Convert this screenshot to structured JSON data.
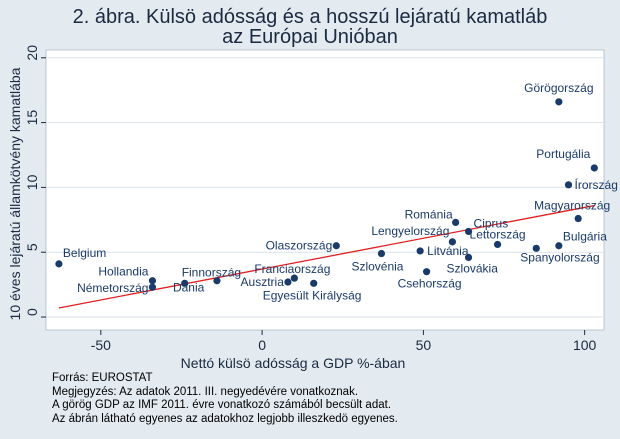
{
  "chart_data": {
    "type": "scatter",
    "title_lines": [
      "2. ábra. Külsö adósság és a hosszú lejáratú kamatláb",
      "az Európai Unióban"
    ],
    "xlabel": "Nettó külsö  adósság a GDP %-ában",
    "ylabel": "10 éves lejáratú államkötvény kamatlába",
    "xlim": [
      -67,
      106
    ],
    "ylim": [
      -1,
      20.6
    ],
    "xticks": [
      -50,
      0,
      50,
      100
    ],
    "yticks": [
      0,
      5,
      10,
      15,
      20
    ],
    "grid": "horizontal",
    "points": [
      {
        "label": "Görögország",
        "x": 92,
        "y": 16.6
      },
      {
        "label": "Portugália",
        "x": 103,
        "y": 11.5
      },
      {
        "label": "Írország",
        "x": 95,
        "y": 10.2
      },
      {
        "label": "Magyarország",
        "x": 98,
        "y": 7.6
      },
      {
        "label": "Románia",
        "x": 60,
        "y": 7.3
      },
      {
        "label": "Ciprus",
        "x": 64,
        "y": 6.6
      },
      {
        "label": "Lettország",
        "x": 73,
        "y": 5.6
      },
      {
        "label": "Lengyelország",
        "x": 59,
        "y": 5.8
      },
      {
        "label": "Bulgária",
        "x": 92,
        "y": 5.5
      },
      {
        "label": "Spanyolország",
        "x": 85,
        "y": 5.3
      },
      {
        "label": "Olaszország",
        "x": 23,
        "y": 5.5
      },
      {
        "label": "Szlovénia",
        "x": 37,
        "y": 4.9
      },
      {
        "label": "Litvánia",
        "x": 49,
        "y": 5.1
      },
      {
        "label": "Szlovákia",
        "x": 64,
        "y": 4.6
      },
      {
        "label": "Csehország",
        "x": 51,
        "y": 3.5
      },
      {
        "label": "Belgium",
        "x": -63,
        "y": 4.1
      },
      {
        "label": "Hollandia",
        "x": -34,
        "y": 2.8
      },
      {
        "label": "Németország",
        "x": -34,
        "y": 2.3
      },
      {
        "label": "Finnország",
        "x": -24,
        "y": 2.6
      },
      {
        "label": "Dánia",
        "x": -14,
        "y": 2.8
      },
      {
        "label": "Franciaország",
        "x": 10,
        "y": 3.0
      },
      {
        "label": "Ausztria",
        "x": 8,
        "y": 2.7
      },
      {
        "label": "Egyesült Királyság",
        "x": 16,
        "y": 2.6
      }
    ],
    "fit_line": {
      "x1": -63,
      "y1": 0.7,
      "x2": 103,
      "y2": 8.6
    },
    "colors": {
      "marker": "#1a3a6a",
      "fit": "#e02020",
      "plot_bg": "#ffffff",
      "page_bg": "#e3eaf0",
      "grid": "#d9e2ea"
    }
  },
  "notes": [
    "Forrás: EUROSTAT",
    "Megjegyzés: Az adatok 2011. III. negyedévére vonatkoznak.",
    "A görög GDP az IMF 2011. évre vonatkozó számából becsült adat.",
    "Az ábrán látható egyenes az adatokhoz legjobb illeszkedö egyenes."
  ]
}
